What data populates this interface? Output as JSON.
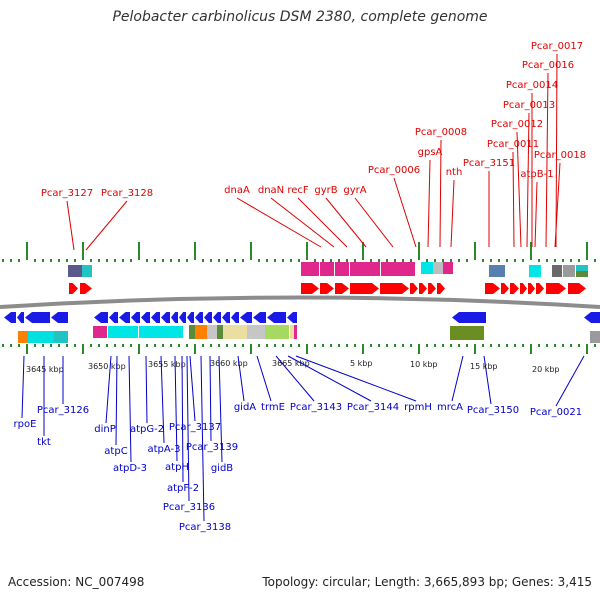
{
  "title": "Pelobacter carbinolicus DSM 2380, complete genome",
  "footer": {
    "accession": "Accession: NC_007498",
    "summary": "Topology: circular; Length: 3,665,893 bp; Genes: 3,415"
  },
  "colors": {
    "forward_label": "#e00000",
    "reverse_label": "#0000cc",
    "forward_arrow": "#ff0000",
    "reverse_arrow": "#1a1ae6",
    "backbone": "#8c8c8c",
    "tick": "#2a8a2a"
  },
  "scale_labels": [
    "3645 kbp",
    "3650 kbp",
    "3655 kbp",
    "3660 kbp",
    "3665 kbp",
    "5 kbp",
    "10 kbp",
    "15 kbp",
    "20 kbp"
  ],
  "forward_genes": [
    "Pcar_3127",
    "Pcar_3128",
    "dnaA",
    "dnaN",
    "recF",
    "gyrB",
    "gyrA",
    "Pcar_0006",
    "Pcar_0008",
    "gpsA",
    "nth",
    "Pcar_3151",
    "Pcar_0011",
    "Pcar_0012",
    "Pcar_0013",
    "Pcar_0014",
    "Pcar_0016",
    "Pcar_0017",
    "atpB-1",
    "Pcar_0018"
  ],
  "reverse_genes": [
    "rpoE",
    "tkt",
    "Pcar_3126",
    "dinP",
    "atpC",
    "atpD-3",
    "atpG-2",
    "atpA-3",
    "atpH",
    "atpF-2",
    "Pcar_3136",
    "Pcar_3138",
    "Pcar_3137",
    "Pcar_3139",
    "gidB",
    "gidA",
    "trmE",
    "Pcar_3143",
    "Pcar_3144",
    "rpmH",
    "mrcA",
    "Pcar_3150",
    "Pcar_0021"
  ]
}
